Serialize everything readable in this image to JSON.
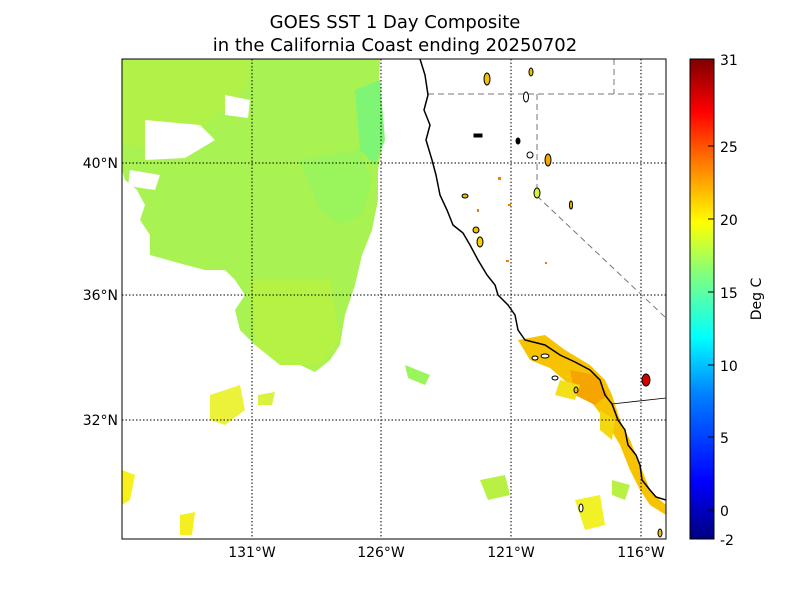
{
  "title": {
    "line1": "GOES SST 1 Day Composite",
    "line2": "in the California Coast ending 20250702"
  },
  "map": {
    "lat_labels": [
      "40°N",
      "36°N",
      "32°N"
    ],
    "lon_labels": [
      "131°W",
      "126°W",
      "121°W",
      "116°W"
    ],
    "lat_range": [
      28.3,
      43.3
    ],
    "lon_range": [
      -136,
      -115
    ]
  },
  "colorbar": {
    "label": "Deg C",
    "ticks": [
      "31",
      "25",
      "20",
      "15",
      "10",
      "5",
      "0",
      "-2"
    ],
    "range": [
      -2,
      31
    ],
    "colormap": [
      "#00007f",
      "#0000ff",
      "#007fff",
      "#00ffff",
      "#7fff7f",
      "#ffff00",
      "#ff7f00",
      "#ff0000",
      "#7f0000"
    ]
  },
  "colors": {
    "ocean_warm_green": "#aef24a",
    "ocean_green": "#98f45a",
    "coastal_cool": "#66f58a",
    "southern_warm": "#f8ef1a",
    "bight_orange": "#f7b500"
  }
}
